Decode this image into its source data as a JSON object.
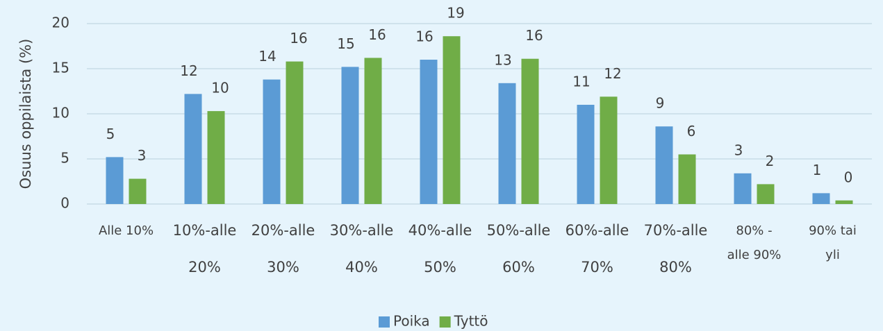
{
  "chart_data": {
    "type": "bar",
    "y_label": "Osuus oppilaista (%)",
    "categories": [
      [
        "Alle 10%"
      ],
      [
        "10%-alle",
        "20%"
      ],
      [
        "20%-alle",
        "30%"
      ],
      [
        "30%-alle",
        "40%"
      ],
      [
        "40%-alle",
        "50%"
      ],
      [
        "50%-alle",
        "60%"
      ],
      [
        "60%-alle",
        "70%"
      ],
      [
        "70%-alle",
        "80%"
      ],
      [
        "80% -",
        "alle 90%"
      ],
      [
        "90% tai",
        "yli"
      ]
    ],
    "series": [
      {
        "name": "Poika",
        "color": "#5b9bd5",
        "values": [
          5.2,
          12.2,
          13.8,
          15.2,
          16.0,
          13.4,
          11.0,
          8.6,
          3.4,
          1.2
        ],
        "value_labels": [
          "5",
          "12",
          "14",
          "15",
          "16",
          "13",
          "11",
          "9",
          "3",
          "1"
        ]
      },
      {
        "name": "Tyttö",
        "color": "#70ad47",
        "values": [
          2.8,
          10.3,
          15.8,
          16.2,
          18.6,
          16.1,
          11.9,
          5.5,
          2.2,
          0.4
        ],
        "value_labels": [
          "3",
          "10",
          "16",
          "16",
          "19",
          "16",
          "12",
          "6",
          "2",
          "0"
        ]
      }
    ],
    "ylim": [
      0,
      20
    ],
    "yticks": [
      0,
      5,
      10,
      15,
      20
    ],
    "grid": true,
    "legend": "bottom"
  }
}
